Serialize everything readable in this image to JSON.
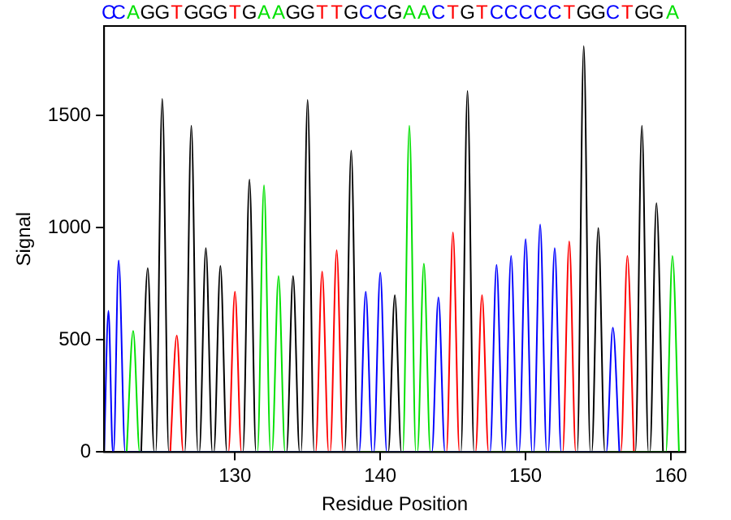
{
  "chart_data": {
    "type": "line",
    "xlabel": "Residue Position",
    "ylabel": "Signal",
    "xlim": [
      121,
      161
    ],
    "xticks": [
      130,
      140,
      150,
      160
    ],
    "ylim": [
      0,
      1900
    ],
    "yticks": [
      0,
      500,
      1000,
      1500
    ],
    "grid": false,
    "legend": false,
    "marker": "none",
    "line_style": "solid",
    "series": [
      {
        "color": "#0000ff",
        "x": [
          121,
          121.3,
          121.6,
          121.65,
          122,
          122.45,
          138.55,
          139,
          139.45,
          139.55,
          140,
          140.45,
          143.55,
          144,
          144.45,
          147.55,
          148,
          148.45,
          148.55,
          149,
          149.45,
          149.55,
          150,
          150.45,
          150.55,
          151,
          151.45,
          151.55,
          152,
          152.45,
          155.55,
          156,
          156.45
        ],
        "values": [
          0,
          630,
          0,
          0,
          855,
          0,
          0,
          715,
          0,
          0,
          800,
          0,
          0,
          690,
          0,
          0,
          835,
          0,
          0,
          875,
          0,
          0,
          950,
          0,
          0,
          1015,
          0,
          0,
          910,
          0,
          0,
          555,
          0
        ]
      },
      {
        "color": "#00e000",
        "x": [
          122.55,
          123,
          123.45,
          131.55,
          132,
          132.45,
          132.55,
          133,
          133.45,
          141.55,
          142,
          142.45,
          142.55,
          143,
          143.45,
          159.65,
          160.1,
          160.55
        ],
        "values": [
          0,
          540,
          0,
          0,
          1190,
          0,
          0,
          785,
          0,
          0,
          1455,
          0,
          0,
          840,
          0,
          0,
          875,
          0
        ]
      },
      {
        "color": "#000000",
        "x": [
          123.55,
          124,
          124.45,
          124.55,
          125,
          125.45,
          126.55,
          127,
          127.45,
          127.55,
          128,
          128.45,
          128.55,
          129,
          129.45,
          130.55,
          131,
          131.45,
          133.55,
          134,
          134.45,
          134.55,
          135,
          135.45,
          137.55,
          138,
          138.45,
          140.55,
          141,
          141.45,
          145.55,
          146,
          146.45,
          153.55,
          154,
          154.45,
          154.55,
          155,
          155.45,
          157.55,
          158,
          158.45,
          158.55,
          159,
          159.45
        ],
        "values": [
          0,
          820,
          0,
          0,
          1575,
          0,
          0,
          1455,
          0,
          0,
          910,
          0,
          0,
          830,
          0,
          0,
          1215,
          0,
          0,
          785,
          0,
          0,
          1570,
          0,
          0,
          1345,
          0,
          0,
          700,
          0,
          0,
          1610,
          0,
          0,
          1810,
          0,
          0,
          1000,
          0,
          0,
          1455,
          0,
          0,
          1110,
          0
        ]
      },
      {
        "color": "#ff0000",
        "x": [
          125.55,
          126,
          126.45,
          129.55,
          130,
          130.45,
          135.55,
          136,
          136.45,
          136.55,
          137,
          137.45,
          144.55,
          145,
          145.45,
          146.55,
          147,
          147.45,
          152.55,
          153,
          153.45,
          156.55,
          157,
          157.45
        ],
        "values": [
          0,
          520,
          0,
          0,
          715,
          0,
          0,
          805,
          0,
          0,
          900,
          0,
          0,
          980,
          0,
          0,
          700,
          0,
          0,
          940,
          0,
          0,
          875,
          0
        ]
      }
    ],
    "annotations": [
      "C",
      "C",
      "A",
      "G",
      "G",
      "T",
      "G",
      "G",
      "G",
      "T",
      "G",
      "A",
      "A",
      "G",
      "G",
      "T",
      "T",
      "G",
      "C",
      "C",
      "G",
      "A",
      "A",
      "C",
      "T",
      "G",
      "T",
      "C",
      "C",
      "C",
      "C",
      "C",
      "T",
      "G",
      "G",
      "C",
      "T",
      "G",
      "G",
      "A"
    ]
  }
}
